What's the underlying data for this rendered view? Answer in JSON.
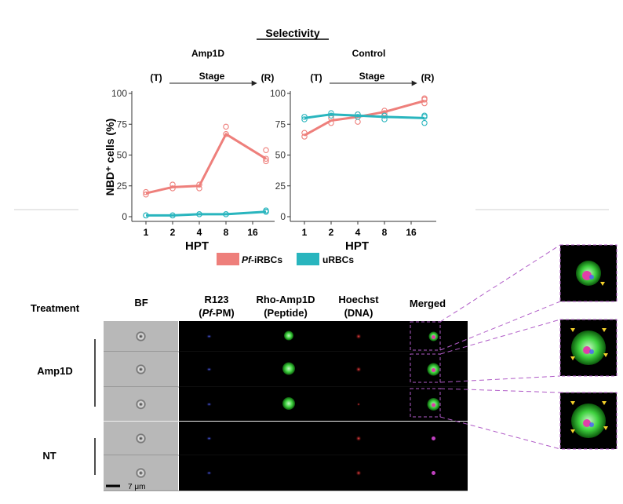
{
  "figure_title": "Selectivity",
  "chart_data": [
    {
      "type": "line",
      "title": "Amp1D",
      "stage_start": "(T)",
      "stage_label": "Stage",
      "stage_end": "(R)",
      "xlabel": "HPT",
      "ylabel": "NBD⁺ cells (%)",
      "categories": [
        "1",
        "2",
        "4",
        "8",
        "16"
      ],
      "ylim": [
        0,
        100
      ],
      "yticks": [
        "0",
        "25",
        "50",
        "75",
        "100"
      ],
      "grid": false,
      "series": [
        {
          "name": "Pf-iRBCs",
          "color": "#ee7f7b",
          "x": [
            0,
            1,
            2,
            3,
            4.5
          ],
          "values": [
            19,
            24,
            25,
            67,
            47
          ],
          "points": [
            [
              0,
              20
            ],
            [
              0,
              18
            ],
            [
              1,
              26
            ],
            [
              1,
              23
            ],
            [
              2,
              26
            ],
            [
              2,
              23
            ],
            [
              3,
              73
            ],
            [
              3,
              67
            ],
            [
              4.5,
              54
            ],
            [
              4.5,
              47
            ],
            [
              4.5,
              45
            ]
          ]
        },
        {
          "name": "uRBCs",
          "color": "#29b5be",
          "x": [
            0,
            1,
            2,
            3,
            4.5
          ],
          "values": [
            1,
            1,
            2,
            2,
            4
          ],
          "points": [
            [
              0,
              1
            ],
            [
              0,
              1
            ],
            [
              1,
              1
            ],
            [
              1,
              1
            ],
            [
              2,
              2
            ],
            [
              2,
              2
            ],
            [
              3,
              2
            ],
            [
              3,
              2
            ],
            [
              4.5,
              5
            ],
            [
              4.5,
              4
            ],
            [
              4.5,
              4
            ]
          ]
        }
      ]
    },
    {
      "type": "line",
      "title": "Control",
      "stage_start": "(T)",
      "stage_label": "Stage",
      "stage_end": "(R)",
      "xlabel": "HPT",
      "ylabel": "",
      "categories": [
        "1",
        "2",
        "4",
        "8",
        "16"
      ],
      "ylim": [
        0,
        100
      ],
      "yticks": [
        "0",
        "25",
        "50",
        "75",
        "100"
      ],
      "grid": false,
      "series": [
        {
          "name": "Pf-iRBCs",
          "color": "#ee7f7b",
          "x": [
            0,
            1,
            2,
            3,
            4.5
          ],
          "values": [
            66,
            78,
            81,
            85,
            94
          ],
          "points": [
            [
              0,
              65
            ],
            [
              0,
              68
            ],
            [
              1,
              76
            ],
            [
              1,
              80
            ],
            [
              2,
              77
            ],
            [
              2,
              83
            ],
            [
              3,
              84
            ],
            [
              3,
              86
            ],
            [
              4.5,
              92
            ],
            [
              4.5,
              96
            ],
            [
              4.5,
              95
            ]
          ]
        },
        {
          "name": "uRBCs",
          "color": "#29b5be",
          "x": [
            0,
            1,
            2,
            3,
            4.5
          ],
          "values": [
            80,
            83,
            82,
            81,
            80
          ],
          "points": [
            [
              0,
              79
            ],
            [
              0,
              81
            ],
            [
              1,
              82
            ],
            [
              1,
              84
            ],
            [
              2,
              81
            ],
            [
              2,
              83
            ],
            [
              3,
              79
            ],
            [
              3,
              82
            ],
            [
              4.5,
              76
            ],
            [
              4.5,
              82
            ],
            [
              4.5,
              81
            ]
          ]
        }
      ]
    }
  ],
  "legend": {
    "placement": "bottom",
    "items": [
      {
        "prefix": "Pf",
        "suffix": "-iRBCs",
        "color": "#ee7f7b"
      },
      {
        "prefix": "",
        "suffix": "uRBCs",
        "color": "#29b5be"
      }
    ]
  },
  "imaging": {
    "treatment_header": "Treatment",
    "columns": [
      {
        "line1": "BF",
        "line2": ""
      },
      {
        "line1": "R123",
        "line2a": "(",
        "line2i": "Pf",
        "line2b": "-PM)"
      },
      {
        "line1": "Rho-Amp1D",
        "line2": "(Peptide)"
      },
      {
        "line1": "Hoechst",
        "line2": "(DNA)"
      },
      {
        "line1": "Merged",
        "line2": ""
      }
    ],
    "groups": [
      {
        "label": "Amp1D"
      },
      {
        "label": "NT"
      }
    ],
    "scale_bar": "7 μm"
  }
}
